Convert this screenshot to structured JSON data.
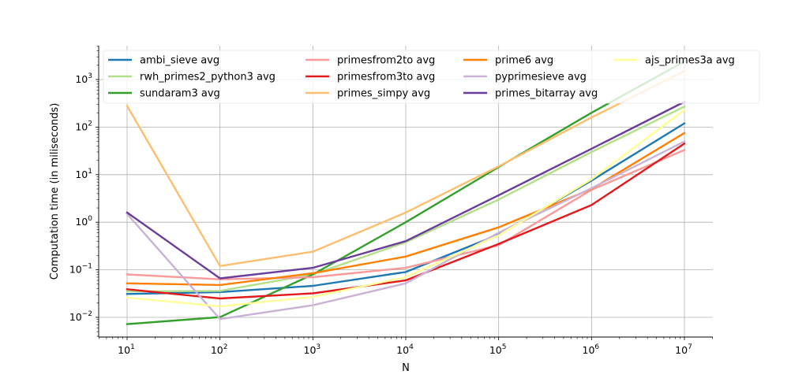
{
  "chart_data": {
    "type": "line",
    "xlabel": "N",
    "ylabel": "Computation time (in miliseconds)",
    "x_scale": "log",
    "y_scale": "log",
    "x": [
      10,
      100,
      1000,
      10000,
      100000,
      1000000,
      10000000
    ],
    "x_tick_labels": [
      {
        "base": "10",
        "exp": "1"
      },
      {
        "base": "10",
        "exp": "2"
      },
      {
        "base": "10",
        "exp": "3"
      },
      {
        "base": "10",
        "exp": "4"
      },
      {
        "base": "10",
        "exp": "5"
      },
      {
        "base": "10",
        "exp": "6"
      },
      {
        "base": "10",
        "exp": "7"
      }
    ],
    "y_tick_labels": [
      {
        "value": 0.01,
        "base": "10",
        "exp": "−2"
      },
      {
        "value": 0.1,
        "base": "10",
        "exp": "−1"
      },
      {
        "value": 1,
        "base": "10",
        "exp": "0"
      },
      {
        "value": 10,
        "base": "10",
        "exp": "1"
      },
      {
        "value": 100,
        "base": "10",
        "exp": "2"
      },
      {
        "value": 1000,
        "base": "10",
        "exp": "3"
      }
    ],
    "xlim": [
      5,
      20000000
    ],
    "ylim": [
      0.004,
      4500
    ],
    "grid": true,
    "legend_position": "top",
    "series": [
      {
        "name": "ambi_sieve avg",
        "color": "#1f78b4",
        "values": [
          0.031,
          0.034,
          0.046,
          0.09,
          0.55,
          7.5,
          120
        ]
      },
      {
        "name": "rwh_primes2_python3 avg",
        "color": "#b2df8a",
        "values": [
          0.035,
          0.036,
          0.08,
          0.38,
          3.0,
          30,
          270
        ]
      },
      {
        "name": "sundaram3 avg",
        "color": "#33a02c",
        "values": [
          0.0072,
          0.0101,
          0.08,
          1.0,
          14.5,
          200,
          2400
        ]
      },
      {
        "name": "primesfrom2to avg",
        "color": "#fb9a99",
        "values": [
          0.08,
          0.063,
          0.07,
          0.11,
          0.33,
          4.8,
          33
        ]
      },
      {
        "name": "primesfrom3to avg",
        "color": "#e31a1c",
        "values": [
          0.039,
          0.025,
          0.032,
          0.06,
          0.35,
          2.3,
          45
        ]
      },
      {
        "name": "primes_simpy avg",
        "color": "#fdbf6f",
        "values": [
          280,
          0.12,
          0.24,
          1.6,
          15,
          160,
          1500
        ]
      },
      {
        "name": "prime6 avg",
        "color": "#ff7f00",
        "values": [
          0.052,
          0.048,
          0.085,
          0.19,
          0.78,
          5.0,
          75
        ]
      },
      {
        "name": "pyprimesieve avg",
        "color": "#cab2d6",
        "values": [
          1.5,
          0.0092,
          0.018,
          0.052,
          0.6,
          5.2,
          50
        ]
      },
      {
        "name": "primes_bitarray avg",
        "color": "#6a3d9a",
        "values": [
          1.6,
          0.066,
          0.11,
          0.4,
          3.7,
          35,
          340
        ]
      },
      {
        "name": "ajs_primes3a avg",
        "color": "#ffff99",
        "values": [
          0.026,
          0.017,
          0.027,
          0.07,
          0.53,
          8.0,
          230
        ]
      }
    ]
  }
}
